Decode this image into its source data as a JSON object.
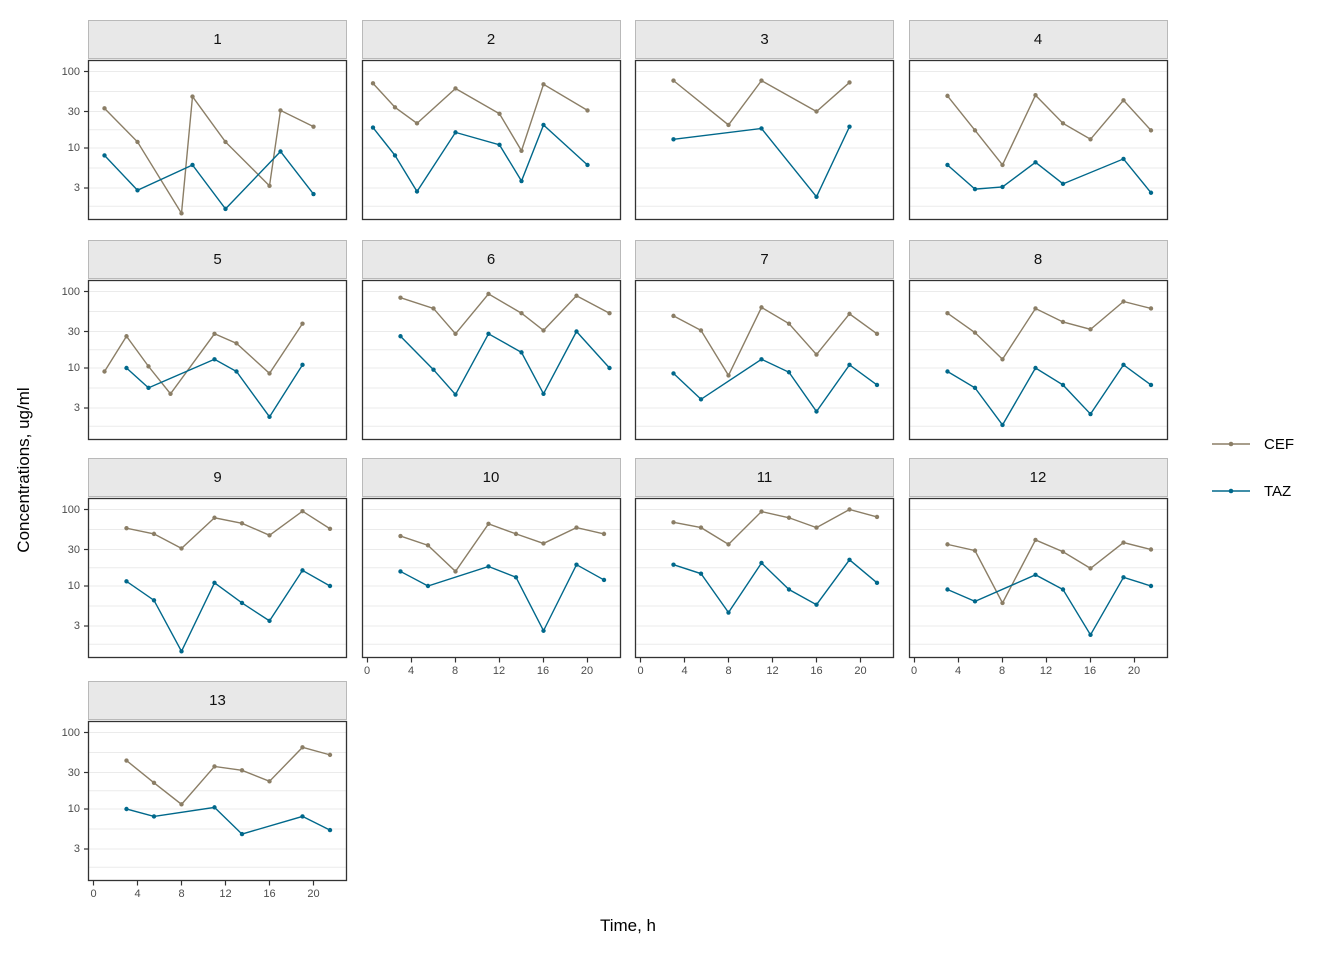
{
  "figure": {
    "y_axis_title": "Concentrations, ug/ml",
    "x_axis_title": "Time, h",
    "colors": {
      "cef": "#8B7E66",
      "taz": "#00688B",
      "grid": "#ebebeb",
      "strip_bg": "#e8e8e8",
      "panel_border": "#333333",
      "axis_text": "#4d4d4d"
    },
    "legend": {
      "items": [
        {
          "label": "CEF",
          "color_key": "cef"
        },
        {
          "label": "TAZ",
          "color_key": "taz"
        }
      ]
    }
  },
  "chart_data": {
    "type": "line",
    "title": "",
    "xlabel": "Time, h",
    "ylabel": "Concentrations, ug/ml",
    "x_scale": {
      "ticks": [
        0,
        4,
        8,
        12,
        16,
        20
      ],
      "domain": [
        -0.5,
        23
      ]
    },
    "y_scale": {
      "type": "log10",
      "ticks": [
        3,
        10,
        30,
        100
      ],
      "minor_ticks": [
        1.73,
        5.48,
        17.3,
        54.8
      ],
      "domain": [
        1.2,
        151
      ]
    },
    "legend_position": "right",
    "series_names": [
      "CEF",
      "TAZ"
    ],
    "facets": [
      {
        "label": "1",
        "CEF": {
          "t": [
            1,
            4,
            8,
            9,
            12,
            16,
            17,
            20
          ],
          "v": [
            33,
            12,
            1.4,
            47,
            12,
            3.2,
            31,
            19
          ]
        },
        "TAZ": {
          "t": [
            1,
            4,
            9,
            12,
            17,
            20
          ],
          "v": [
            8,
            2.8,
            6,
            1.6,
            9,
            2.5
          ]
        }
      },
      {
        "label": "2",
        "CEF": {
          "t": [
            0.5,
            2.5,
            4.5,
            8,
            12,
            14,
            16,
            20
          ],
          "v": [
            70,
            34,
            21,
            60,
            28,
            9.2,
            68,
            31
          ]
        },
        "TAZ": {
          "t": [
            0.5,
            2.5,
            4.5,
            8,
            12,
            14,
            16,
            20
          ],
          "v": [
            18.5,
            8,
            2.7,
            16,
            11,
            3.7,
            20,
            6
          ]
        }
      },
      {
        "label": "3",
        "CEF": {
          "t": [
            3,
            8,
            11,
            16,
            19
          ],
          "v": [
            76,
            20,
            76,
            30,
            72
          ]
        },
        "TAZ": {
          "t": [
            3,
            11,
            16,
            19
          ],
          "v": [
            13,
            18,
            2.3,
            19
          ]
        }
      },
      {
        "label": "4",
        "CEF": {
          "t": [
            3,
            5.5,
            8,
            11,
            13.5,
            16,
            19,
            21.5
          ],
          "v": [
            48,
            17,
            6,
            49,
            21,
            13,
            42,
            17
          ]
        },
        "TAZ": {
          "t": [
            3,
            5.5,
            8,
            11,
            13.5,
            19,
            21.5
          ],
          "v": [
            6,
            2.9,
            3.1,
            6.5,
            3.4,
            7.2,
            2.6
          ]
        }
      },
      {
        "label": "5",
        "CEF": {
          "t": [
            1,
            3,
            5,
            7,
            11,
            13,
            16,
            19
          ],
          "v": [
            9,
            26,
            10.5,
            4.6,
            28,
            21,
            8.5,
            38
          ]
        },
        "TAZ": {
          "t": [
            3,
            5,
            11,
            13,
            16,
            19
          ],
          "v": [
            10,
            5.5,
            13,
            9,
            2.3,
            11
          ]
        }
      },
      {
        "label": "6",
        "CEF": {
          "t": [
            3,
            6,
            8,
            11,
            14,
            16,
            19,
            22
          ],
          "v": [
            83,
            60,
            28,
            93,
            52,
            31,
            88,
            52
          ]
        },
        "TAZ": {
          "t": [
            3,
            6,
            8,
            11,
            14,
            16,
            19,
            22
          ],
          "v": [
            26,
            9.5,
            4.5,
            28,
            16,
            4.6,
            30,
            10
          ]
        }
      },
      {
        "label": "7",
        "CEF": {
          "t": [
            3,
            5.5,
            8,
            11,
            13.5,
            16,
            19,
            21.5
          ],
          "v": [
            48,
            31,
            8,
            62,
            38,
            15,
            51,
            28
          ]
        },
        "TAZ": {
          "t": [
            3,
            5.5,
            11,
            13.5,
            16,
            19,
            21.5
          ],
          "v": [
            8.5,
            3.9,
            13,
            8.8,
            2.7,
            11,
            6
          ]
        }
      },
      {
        "label": "8",
        "CEF": {
          "t": [
            3,
            5.5,
            8,
            11,
            13.5,
            16,
            19,
            21.5
          ],
          "v": [
            52,
            29,
            13,
            60,
            40,
            32,
            74,
            60
          ]
        },
        "TAZ": {
          "t": [
            3,
            5.5,
            8,
            11,
            13.5,
            16,
            19,
            21.5
          ],
          "v": [
            9,
            5.5,
            1.8,
            10,
            6,
            2.5,
            11,
            6
          ]
        }
      },
      {
        "label": "9",
        "CEF": {
          "t": [
            3,
            5.5,
            8,
            11,
            13.5,
            16,
            19,
            21.5
          ],
          "v": [
            57,
            48,
            31,
            78,
            66,
            46,
            95,
            56
          ]
        },
        "TAZ": {
          "t": [
            3,
            5.5,
            8,
            11,
            13.5,
            16,
            19,
            21.5
          ],
          "v": [
            11.5,
            6.5,
            1.4,
            11,
            6,
            3.5,
            16,
            10
          ]
        }
      },
      {
        "label": "10",
        "CEF": {
          "t": [
            3,
            5.5,
            8,
            11,
            13.5,
            16,
            19,
            21.5
          ],
          "v": [
            45,
            34,
            15.5,
            65,
            48,
            36,
            58,
            48
          ]
        },
        "TAZ": {
          "t": [
            3,
            5.5,
            11,
            13.5,
            16,
            19,
            21.5
          ],
          "v": [
            15.5,
            10,
            18,
            13,
            2.6,
            19,
            12
          ]
        }
      },
      {
        "label": "11",
        "CEF": {
          "t": [
            3,
            5.5,
            8,
            11,
            13.5,
            16,
            19,
            21.5
          ],
          "v": [
            68,
            58,
            35,
            94,
            78,
            58,
            100,
            80
          ]
        },
        "TAZ": {
          "t": [
            3,
            5.5,
            8,
            11,
            13.5,
            16,
            19,
            21.5
          ],
          "v": [
            19,
            14.5,
            4.5,
            20,
            9,
            5.7,
            22,
            11
          ]
        }
      },
      {
        "label": "12",
        "CEF": {
          "t": [
            3,
            5.5,
            8,
            11,
            13.5,
            16,
            19,
            21.5
          ],
          "v": [
            35,
            29,
            6,
            40,
            28,
            17,
            37,
            30
          ]
        },
        "TAZ": {
          "t": [
            3,
            5.5,
            11,
            13.5,
            16,
            19,
            21.5
          ],
          "v": [
            9,
            6.3,
            14,
            9,
            2.3,
            13,
            10
          ]
        }
      },
      {
        "label": "13",
        "CEF": {
          "t": [
            3,
            5.5,
            8,
            11,
            13.5,
            16,
            19,
            21.5
          ],
          "v": [
            43,
            22,
            11.5,
            36,
            32,
            23,
            64,
            51
          ]
        },
        "TAZ": {
          "t": [
            3,
            5.5,
            11,
            13.5,
            19,
            21.5
          ],
          "v": [
            10,
            8,
            10.5,
            4.7,
            8,
            5.3
          ]
        }
      }
    ]
  }
}
